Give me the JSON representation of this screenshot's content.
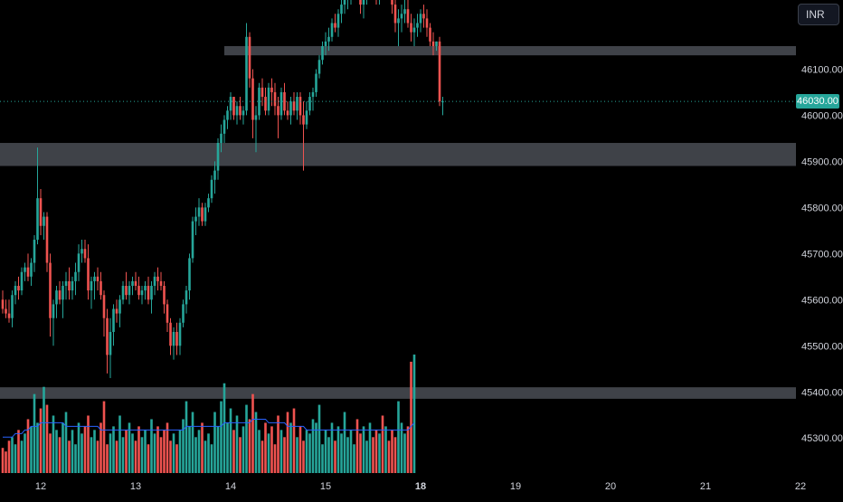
{
  "toolbar": {
    "currency_label": "INR"
  },
  "last_price_label": "46030.00",
  "colors": {
    "up": "#26a69a",
    "down": "#ef5350",
    "volume_ma": "#2962ff",
    "zone": "#4a4d55",
    "background": "#000000",
    "axis_text": "#d1d4dc"
  },
  "chart_data": {
    "type": "candlestick",
    "y_axis": {
      "ticks": [
        "46100.00",
        "46000.00",
        "45900.00",
        "45800.00",
        "45700.00",
        "45600.00",
        "45500.00",
        "45400.00",
        "45300.00"
      ],
      "values": [
        46100,
        46000,
        45900,
        45800,
        45700,
        45600,
        45500,
        45400,
        45300
      ],
      "range": [
        45220,
        46250
      ],
      "position": "right"
    },
    "x_axis": {
      "ticks": [
        {
          "label": "12",
          "bold": false
        },
        {
          "label": "13",
          "bold": false
        },
        {
          "label": "14",
          "bold": false
        },
        {
          "label": "15",
          "bold": false
        },
        {
          "label": "18",
          "bold": true
        },
        {
          "label": "19",
          "bold": false
        },
        {
          "label": "20",
          "bold": false
        },
        {
          "label": "21",
          "bold": false
        },
        {
          "label": "22",
          "bold": false
        }
      ],
      "label_every": 3
    },
    "last_price": 46030,
    "zones": [
      {
        "from": 46130,
        "to": 46150,
        "start_candle": 70
      },
      {
        "from": 45890,
        "to": 45940,
        "start_candle": 0
      },
      {
        "from": 45385,
        "to": 45410,
        "start_candle": 0
      }
    ],
    "candles": [
      [
        45600,
        45620,
        45570,
        45580
      ],
      [
        45580,
        45600,
        45560,
        45570
      ],
      [
        45570,
        45600,
        45550,
        45560
      ],
      [
        45560,
        45620,
        45540,
        45610
      ],
      [
        45610,
        45640,
        45590,
        45630
      ],
      [
        45630,
        45650,
        45600,
        45620
      ],
      [
        45620,
        45670,
        45610,
        45660
      ],
      [
        45660,
        45680,
        45640,
        45670
      ],
      [
        45670,
        45700,
        45640,
        45650
      ],
      [
        45650,
        45690,
        45630,
        45680
      ],
      [
        45680,
        45740,
        45660,
        45730
      ],
      [
        45730,
        45930,
        45720,
        45820
      ],
      [
        45820,
        45840,
        45740,
        45760
      ],
      [
        45760,
        45790,
        45730,
        45780
      ],
      [
        45780,
        45790,
        45660,
        45680
      ],
      [
        45680,
        45700,
        45520,
        45560
      ],
      [
        45560,
        45600,
        45500,
        45590
      ],
      [
        45590,
        45630,
        45560,
        45620
      ],
      [
        45620,
        45640,
        45590,
        45600
      ],
      [
        45600,
        45640,
        45560,
        45630
      ],
      [
        45630,
        45660,
        45600,
        45640
      ],
      [
        45640,
        45670,
        45600,
        45620
      ],
      [
        45620,
        45650,
        45600,
        45640
      ],
      [
        45640,
        45680,
        45610,
        45660
      ],
      [
        45660,
        45720,
        45640,
        45700
      ],
      [
        45700,
        45730,
        45680,
        45710
      ],
      [
        45710,
        45730,
        45680,
        45690
      ],
      [
        45690,
        45720,
        45600,
        45620
      ],
      [
        45620,
        45650,
        45580,
        45640
      ],
      [
        45640,
        45660,
        45600,
        45650
      ],
      [
        45650,
        45670,
        45620,
        45640
      ],
      [
        45640,
        45660,
        45600,
        45610
      ],
      [
        45610,
        45620,
        45520,
        45560
      ],
      [
        45560,
        45580,
        45440,
        45480
      ],
      [
        45480,
        45560,
        45430,
        45530
      ],
      [
        45530,
        45590,
        45500,
        45580
      ],
      [
        45580,
        45600,
        45550,
        45570
      ],
      [
        45570,
        45610,
        45540,
        45600
      ],
      [
        45600,
        45640,
        45590,
        45630
      ],
      [
        45630,
        45660,
        45600,
        45610
      ],
      [
        45610,
        45640,
        45590,
        45630
      ],
      [
        45630,
        45650,
        45610,
        45640
      ],
      [
        45640,
        45660,
        45620,
        45630
      ],
      [
        45630,
        45650,
        45600,
        45610
      ],
      [
        45610,
        45630,
        45590,
        45620
      ],
      [
        45620,
        45640,
        45600,
        45630
      ],
      [
        45630,
        45650,
        45590,
        45600
      ],
      [
        45600,
        45640,
        45570,
        45630
      ],
      [
        45630,
        45660,
        45610,
        45650
      ],
      [
        45650,
        45670,
        45620,
        45640
      ],
      [
        45640,
        45660,
        45620,
        45630
      ],
      [
        45630,
        45640,
        45570,
        45590
      ],
      [
        45590,
        45600,
        45530,
        45550
      ],
      [
        45550,
        45560,
        45480,
        45500
      ],
      [
        45500,
        45540,
        45470,
        45530
      ],
      [
        45530,
        45550,
        45480,
        45500
      ],
      [
        45500,
        45560,
        45480,
        45550
      ],
      [
        45550,
        45600,
        45540,
        45590
      ],
      [
        45590,
        45630,
        45570,
        45620
      ],
      [
        45620,
        45700,
        45600,
        45690
      ],
      [
        45690,
        45780,
        45680,
        45770
      ],
      [
        45770,
        45800,
        45740,
        45780
      ],
      [
        45780,
        45820,
        45760,
        45800
      ],
      [
        45800,
        45810,
        45760,
        45770
      ],
      [
        45770,
        45810,
        45760,
        45800
      ],
      [
        45800,
        45830,
        45790,
        45820
      ],
      [
        45820,
        45870,
        45810,
        45860
      ],
      [
        45860,
        45900,
        45830,
        45880
      ],
      [
        45880,
        45950,
        45860,
        45940
      ],
      [
        45940,
        45980,
        45920,
        45960
      ],
      [
        45960,
        46000,
        45940,
        45990
      ],
      [
        45990,
        46020,
        45970,
        46010
      ],
      [
        46010,
        46050,
        45990,
        46040
      ],
      [
        46040,
        46040,
        45990,
        46000
      ],
      [
        46000,
        46030,
        45980,
        46020
      ],
      [
        46020,
        46040,
        45990,
        46000
      ],
      [
        46000,
        46020,
        45980,
        46010
      ],
      [
        46010,
        46200,
        46000,
        46170
      ],
      [
        46170,
        46180,
        46060,
        46080
      ],
      [
        46080,
        46100,
        45950,
        45990
      ],
      [
        45990,
        46020,
        45920,
        46000
      ],
      [
        46000,
        46070,
        45990,
        46060
      ],
      [
        46060,
        46080,
        46020,
        46040
      ],
      [
        46040,
        46060,
        46000,
        46010
      ],
      [
        46010,
        46070,
        46000,
        46060
      ],
      [
        46060,
        46080,
        46020,
        46050
      ],
      [
        46050,
        46070,
        46000,
        46020
      ],
      [
        46020,
        46040,
        45950,
        46000
      ],
      [
        46000,
        46060,
        45990,
        46050
      ],
      [
        46050,
        46070,
        46000,
        46010
      ],
      [
        46010,
        46030,
        45990,
        46000
      ],
      [
        46000,
        46040,
        45980,
        46030
      ],
      [
        46030,
        46050,
        46000,
        46010
      ],
      [
        46010,
        46050,
        45990,
        46040
      ],
      [
        46040,
        46050,
        45980,
        46000
      ],
      [
        46000,
        46030,
        45880,
        45980
      ],
      [
        45980,
        46030,
        45970,
        46010
      ],
      [
        46010,
        46050,
        46000,
        46040
      ],
      [
        46040,
        46060,
        46010,
        46050
      ],
      [
        46050,
        46100,
        46040,
        46090
      ],
      [
        46090,
        46130,
        46080,
        46120
      ],
      [
        46120,
        46160,
        46110,
        46150
      ],
      [
        46150,
        46180,
        46130,
        46160
      ],
      [
        46160,
        46190,
        46140,
        46170
      ],
      [
        46170,
        46210,
        46160,
        46200
      ],
      [
        46200,
        46220,
        46180,
        46190
      ],
      [
        46190,
        46230,
        46170,
        46220
      ],
      [
        46220,
        46250,
        46200,
        46240
      ],
      [
        46240,
        46260,
        46220,
        46250
      ],
      [
        46250,
        46270,
        46230,
        46260
      ],
      [
        46260,
        46280,
        46240,
        46270
      ],
      [
        46270,
        46290,
        46250,
        46280
      ],
      [
        46280,
        46300,
        46250,
        46270
      ],
      [
        46270,
        46290,
        46220,
        46240
      ],
      [
        46240,
        46270,
        46210,
        46260
      ],
      [
        46260,
        46300,
        46240,
        46290
      ],
      [
        46290,
        46320,
        46260,
        46300
      ],
      [
        46300,
        46320,
        46260,
        46280
      ],
      [
        46280,
        46300,
        46240,
        46260
      ],
      [
        46260,
        46290,
        46240,
        46280
      ],
      [
        46280,
        46300,
        46250,
        46270
      ],
      [
        46270,
        46300,
        46250,
        46290
      ],
      [
        46290,
        46310,
        46260,
        46280
      ],
      [
        46280,
        46290,
        46220,
        46240
      ],
      [
        46240,
        46260,
        46180,
        46200
      ],
      [
        46200,
        46230,
        46150,
        46210
      ],
      [
        46210,
        46240,
        46180,
        46220
      ],
      [
        46220,
        46250,
        46200,
        46230
      ],
      [
        46230,
        46260,
        46190,
        46200
      ],
      [
        46200,
        46220,
        46160,
        46180
      ],
      [
        46180,
        46210,
        46150,
        46190
      ],
      [
        46190,
        46220,
        46170,
        46200
      ],
      [
        46200,
        46230,
        46180,
        46220
      ],
      [
        46220,
        46240,
        46190,
        46210
      ],
      [
        46210,
        46230,
        46170,
        46190
      ],
      [
        46190,
        46200,
        46150,
        46160
      ],
      [
        46160,
        46180,
        46130,
        46150
      ],
      [
        46150,
        46160,
        46140,
        46160
      ],
      [
        46160,
        46170,
        46020,
        46030
      ],
      [
        46030,
        46040,
        46000,
        46030
      ]
    ],
    "volume": [
      7,
      6,
      9,
      10,
      8,
      12,
      9,
      11,
      15,
      13,
      22,
      14,
      18,
      24,
      19,
      11,
      16,
      12,
      10,
      14,
      17,
      9,
      12,
      8,
      14,
      11,
      13,
      16,
      10,
      12,
      9,
      14,
      20,
      8,
      11,
      13,
      9,
      16,
      10,
      12,
      14,
      11,
      9,
      13,
      10,
      12,
      8,
      15,
      11,
      13,
      10,
      12,
      14,
      9,
      11,
      8,
      12,
      15,
      20,
      13,
      17,
      10,
      12,
      14,
      9,
      11,
      8,
      17,
      13,
      20,
      25,
      14,
      18,
      12,
      16,
      10,
      13,
      19,
      15,
      22,
      17,
      12,
      9,
      14,
      11,
      13,
      8,
      16,
      12,
      10,
      17,
      14,
      18,
      10,
      13,
      9,
      12,
      11,
      15,
      14,
      19,
      8,
      12,
      10,
      14,
      9,
      13,
      11,
      17,
      10,
      12,
      8,
      15,
      11,
      13,
      9,
      14,
      10,
      12,
      11,
      16,
      13,
      9,
      12,
      10,
      20,
      14,
      11,
      13,
      31,
      33
    ],
    "volume_ma": [
      10,
      10,
      10,
      10,
      11,
      11,
      11,
      12,
      12,
      13,
      13,
      13,
      14,
      14,
      14,
      14,
      14,
      14,
      14,
      14,
      13,
      13,
      13,
      13,
      13,
      13,
      13,
      13,
      13,
      13,
      13,
      12,
      12,
      12,
      12,
      12,
      12,
      12,
      12,
      12,
      12,
      12,
      12,
      12,
      12,
      12,
      12,
      12,
      12,
      12,
      12,
      12,
      12,
      12,
      12,
      12,
      12,
      12,
      13,
      13,
      13,
      13,
      13,
      13,
      13,
      13,
      13,
      13,
      13,
      13,
      14,
      14,
      14,
      14,
      14,
      14,
      14,
      14,
      14,
      15,
      15,
      15,
      15,
      15,
      14,
      14,
      14,
      14,
      14,
      14,
      13,
      13,
      13,
      13,
      13,
      13,
      12,
      12,
      12,
      12,
      12,
      12,
      12,
      12,
      12,
      12,
      12,
      12,
      12,
      12,
      12,
      12,
      12,
      12,
      12,
      12,
      12,
      12,
      12,
      12,
      12,
      12,
      12,
      12,
      12,
      12,
      12,
      12,
      12,
      13,
      14
    ],
    "volume_max": 34
  }
}
